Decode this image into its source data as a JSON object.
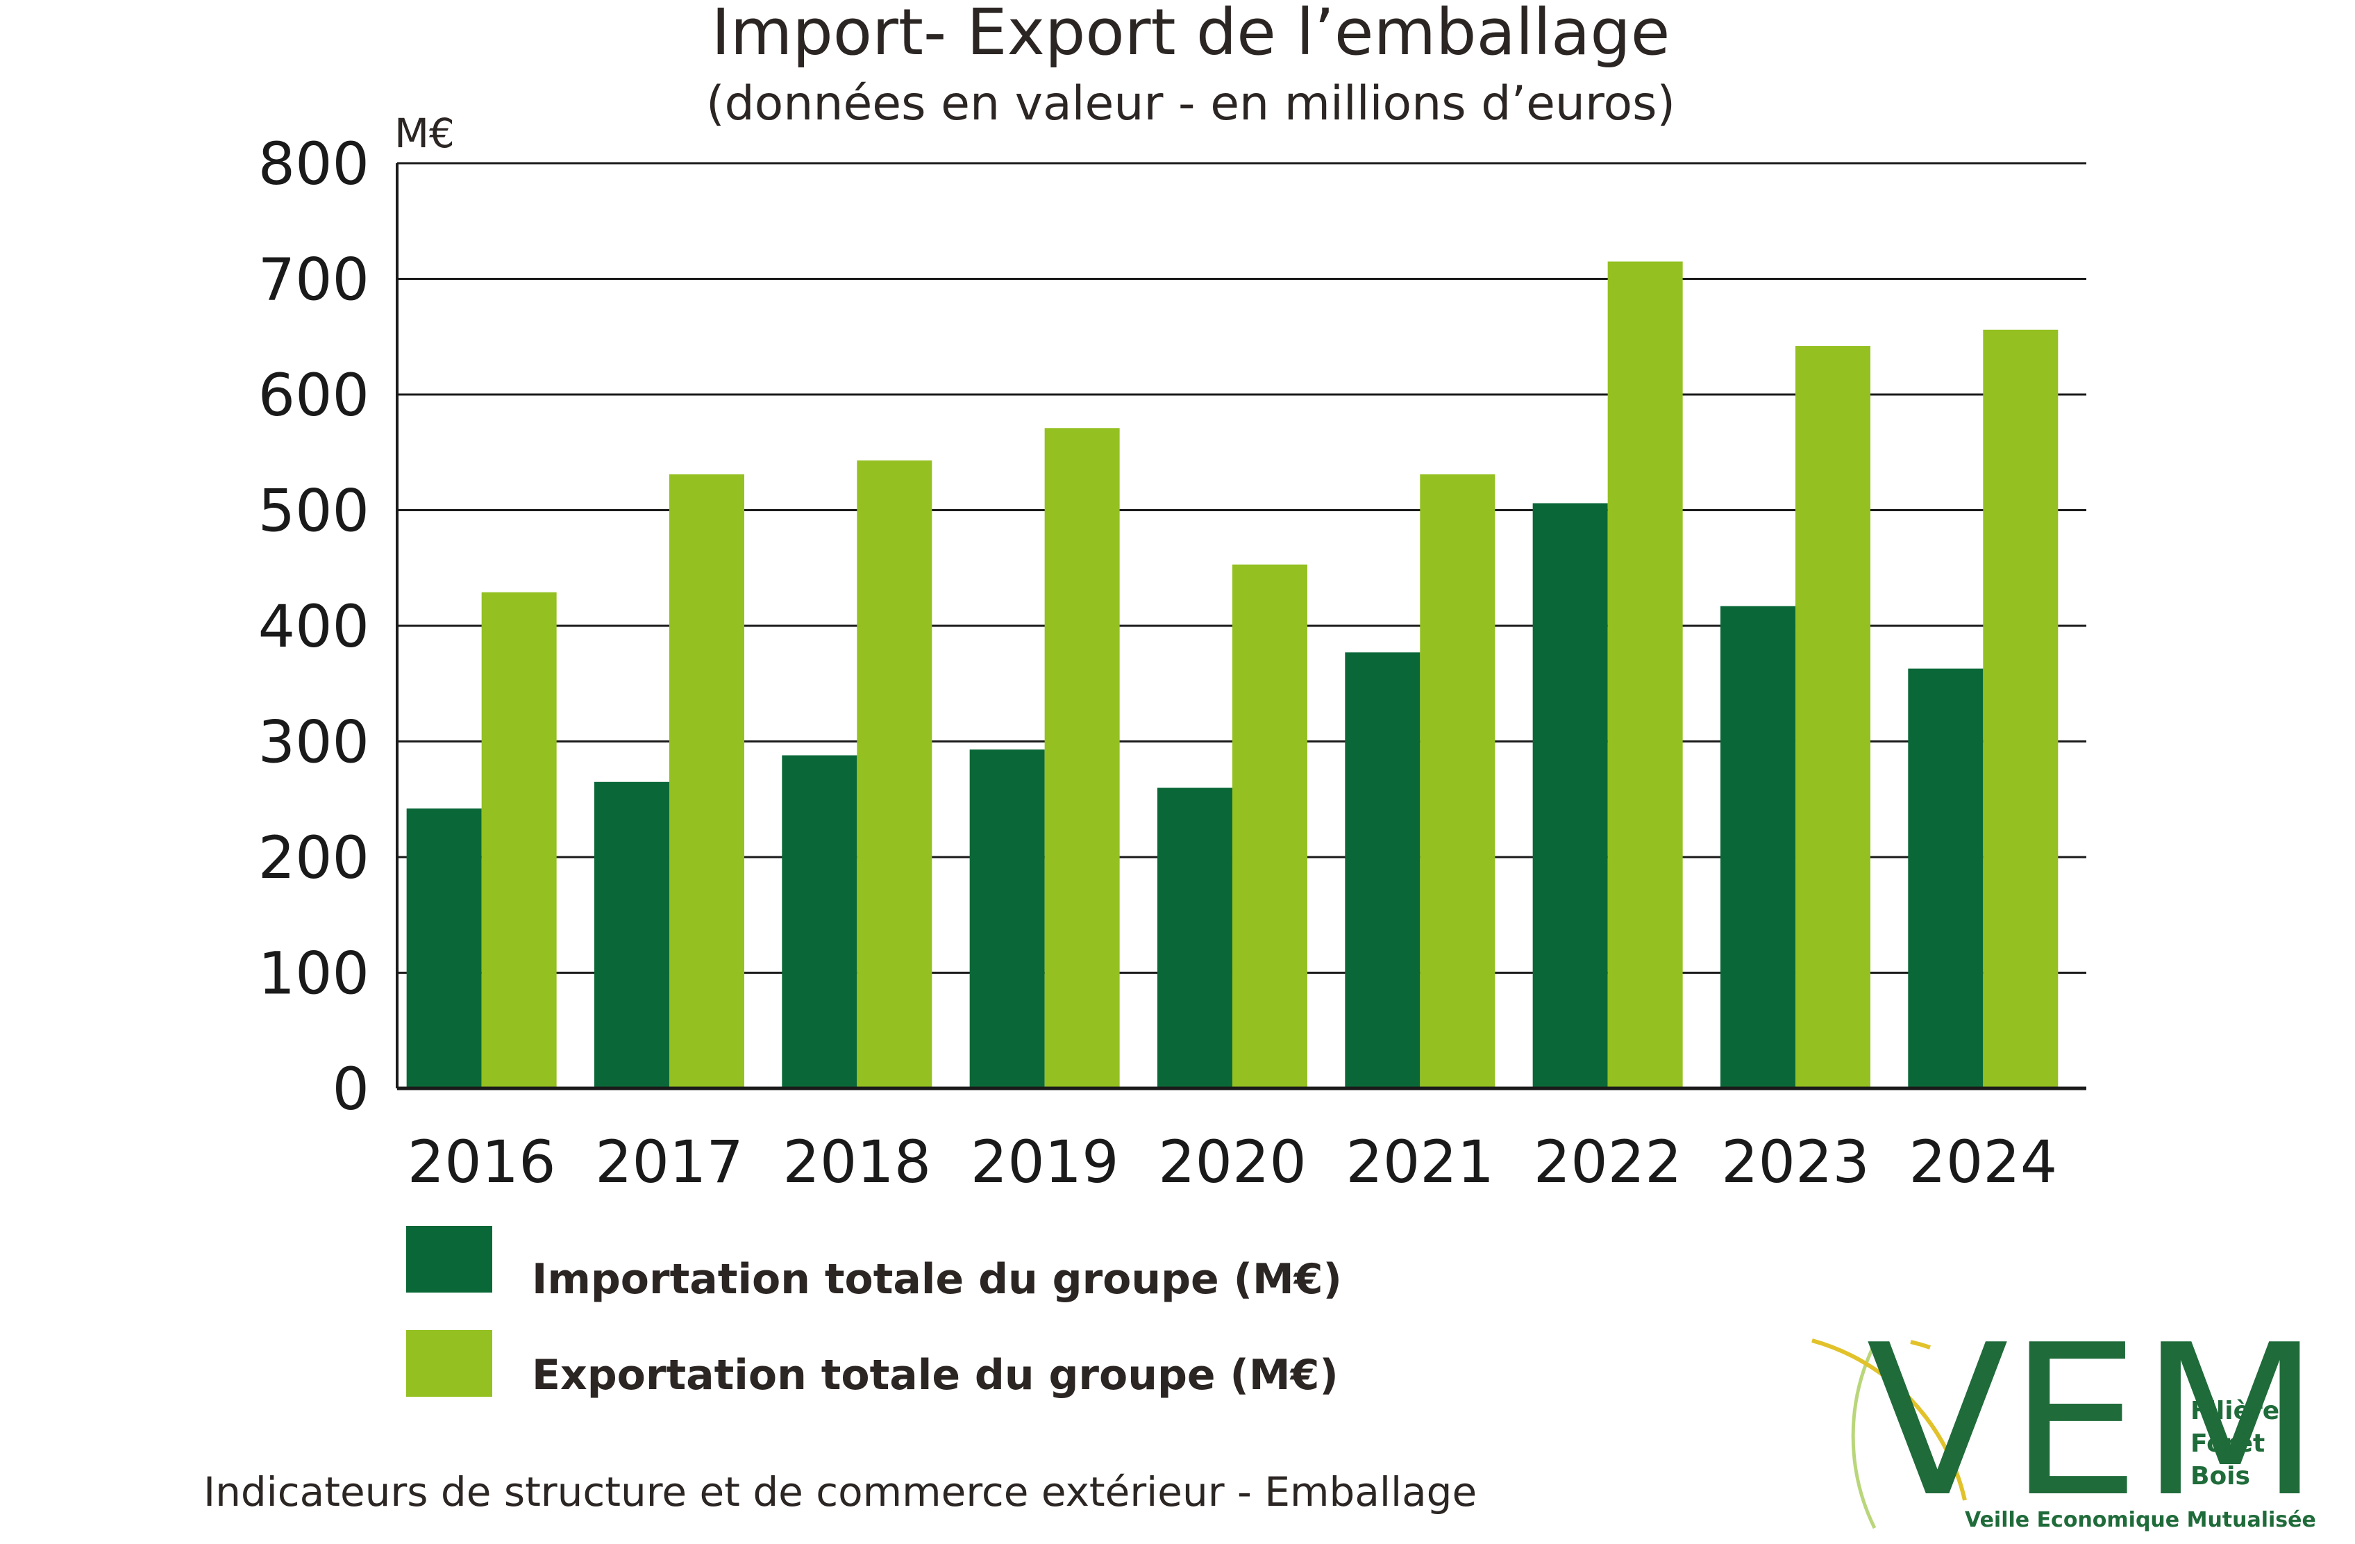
{
  "colors": {
    "import": "#0a6838",
    "export": "#94c021",
    "grid": "#1a1a1a",
    "text": "#2b2523",
    "logo_green": "#1f6b3a",
    "logo_gold": "#e2c22a",
    "logo_light": "#b9d67a"
  },
  "chart_data": {
    "type": "bar",
    "title": "Import- Export de l’emballage",
    "subtitle": "(données en valeur - en millions d’euros)",
    "ylabel": "M€",
    "ylim": [
      0,
      800
    ],
    "yticks": [
      "0",
      "100",
      "200",
      "300",
      "400",
      "500",
      "600",
      "700",
      "800"
    ],
    "grid": true,
    "legend_position": "bottom-left",
    "categories": [
      "2016",
      "2017",
      "2018",
      "2019",
      "2020",
      "2021",
      "2022",
      "2023",
      "2024"
    ],
    "series": [
      {
        "name": "Importation totale du groupe (M€)",
        "values": [
          242,
          265,
          288,
          293,
          260,
          377,
          506,
          417,
          363
        ]
      },
      {
        "name": "Exportation totale du groupe (M€)",
        "values": [
          429,
          531,
          543,
          571,
          453,
          531,
          715,
          642,
          656
        ]
      }
    ]
  },
  "footer": "Indicateurs de structure et de commerce extérieur - Emballage",
  "logo": {
    "letters": "VEM",
    "line1": "Filière",
    "line2": "Forêt",
    "line3": "Bois",
    "tagline": "Veille Economique Mutualisée"
  }
}
